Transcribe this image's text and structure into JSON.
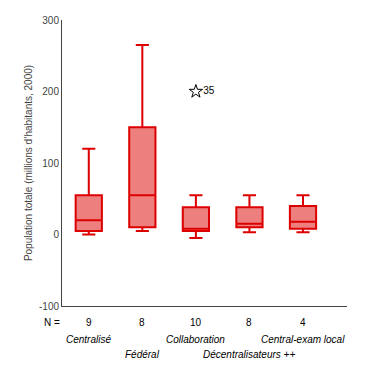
{
  "chart_data": {
    "type": "box",
    "categories": [
      "Centralisé",
      "Fédéral",
      "Collaboration",
      "Décentralisateurs ++",
      "Central-exam local"
    ],
    "n_label": "N =",
    "n": [
      9,
      8,
      10,
      8,
      4
    ],
    "whislo": [
      0,
      5,
      -5,
      3,
      3
    ],
    "q1": [
      5,
      10,
      5,
      10,
      8
    ],
    "med": [
      20,
      55,
      8,
      15,
      18
    ],
    "q3": [
      55,
      150,
      38,
      38,
      40
    ],
    "whishi": [
      120,
      265,
      55,
      55,
      55
    ],
    "color": "#dd0000",
    "ylabel": "Population totale (millions d’habitants, 2000)",
    "ylim": [
      -100,
      300
    ],
    "yticks": [
      -100,
      0,
      100,
      200,
      300
    ],
    "grid": false,
    "outlier": {
      "category": "Collaboration",
      "value": 200,
      "label": "35",
      "marker": "star"
    }
  }
}
